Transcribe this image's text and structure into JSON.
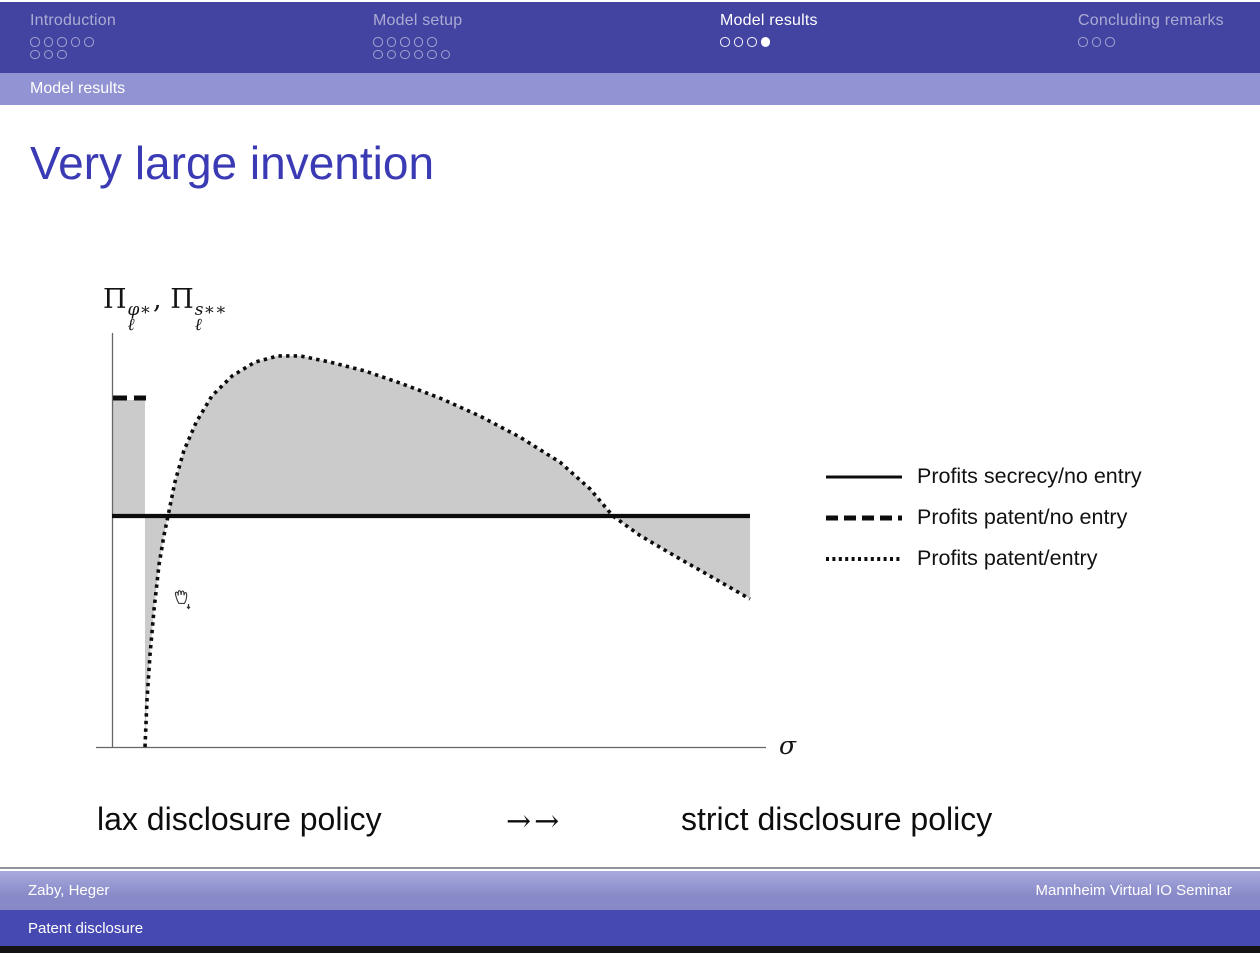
{
  "nav": {
    "sections": [
      {
        "label": "Introduction",
        "active": false,
        "dot_rows": [
          5,
          3
        ],
        "filled_dot": -1
      },
      {
        "label": "Model setup",
        "active": false,
        "dot_rows": [
          5,
          6
        ],
        "filled_dot": -1
      },
      {
        "label": "Model results",
        "active": true,
        "dot_rows": [
          4
        ],
        "filled_dot": 3
      },
      {
        "label": "Concluding remarks",
        "active": false,
        "dot_rows": [
          3
        ],
        "filled_dot": -1
      }
    ],
    "section_bar_label": "Model results"
  },
  "slide": {
    "title": "Very large invention",
    "y_axis_label": {
      "pi1": "Π",
      "sup1": "φ∗",
      "sub1": "ℓ",
      "separator": ",",
      "pi2": "Π",
      "sup2": "s∗∗",
      "sub2": "ℓ"
    },
    "x_axis_label": "σ",
    "caption_left": "lax disclosure policy",
    "caption_arrows": "→→",
    "caption_right": "strict disclosure policy"
  },
  "legend": {
    "items": [
      {
        "style": "solid",
        "label": "Profits secrecy/no entry"
      },
      {
        "style": "dashed",
        "label": "Profits patent/no entry"
      },
      {
        "style": "dotted",
        "label": "Profits patent/entry"
      }
    ]
  },
  "footer": {
    "authors": "Zaby, Heger",
    "venue": "Mannheim Virtual IO Seminar",
    "short_title": "Patent disclosure"
  },
  "colors": {
    "header_bar": "#4343a1",
    "section_bar": "#9193d2",
    "title_text": "#3b3ab5",
    "footer_bar_light": "#9093cf",
    "footer_bar_dark": "#4749b2",
    "shade_gray": "#cbcbcb",
    "line_black": "#0c0c0c",
    "axis_gray": "#666666"
  },
  "chart_data": {
    "type": "line",
    "title": "Very large invention",
    "xlabel": "σ (lax disclosure policy →→ strict disclosure policy)",
    "ylabel": "Π_ℓ^φ*, Π_ℓ^s**",
    "x_range": [
      0,
      1
    ],
    "y_range": [
      0,
      1
    ],
    "grid": false,
    "legend_position": "right-center",
    "shading": "gray areas between the patent profit curves and the secrecy profit line (gains/losses from patenting)",
    "series": [
      {
        "name": "Profits secrecy/no entry",
        "style": "solid",
        "x": [
          0,
          0.977
        ],
        "y_level": 0.554
      },
      {
        "name": "Profits patent/no entry",
        "style": "dashed",
        "x": [
          0,
          0.0505
        ],
        "y_level": 0.837
      },
      {
        "name": "Profits patent/entry",
        "style": "dotted",
        "points": [
          [
            0.0505,
            0.0
          ],
          [
            0.0536,
            0.113
          ],
          [
            0.0582,
            0.221
          ],
          [
            0.0643,
            0.329
          ],
          [
            0.072,
            0.437
          ],
          [
            0.0796,
            0.508
          ],
          [
            0.0858,
            0.554
          ],
          [
            0.0965,
            0.636
          ],
          [
            0.11,
            0.71
          ],
          [
            0.129,
            0.779
          ],
          [
            0.153,
            0.842
          ],
          [
            0.184,
            0.89
          ],
          [
            0.219,
            0.923
          ],
          [
            0.254,
            0.938
          ],
          [
            0.288,
            0.938
          ],
          [
            0.334,
            0.923
          ],
          [
            0.387,
            0.902
          ],
          [
            0.441,
            0.873
          ],
          [
            0.502,
            0.837
          ],
          [
            0.563,
            0.794
          ],
          [
            0.625,
            0.743
          ],
          [
            0.686,
            0.683
          ],
          [
            0.732,
            0.619
          ],
          [
            0.767,
            0.554
          ],
          [
            0.808,
            0.508
          ],
          [
            0.862,
            0.458
          ],
          [
            0.916,
            0.41
          ],
          [
            0.977,
            0.355
          ]
        ]
      }
    ]
  }
}
